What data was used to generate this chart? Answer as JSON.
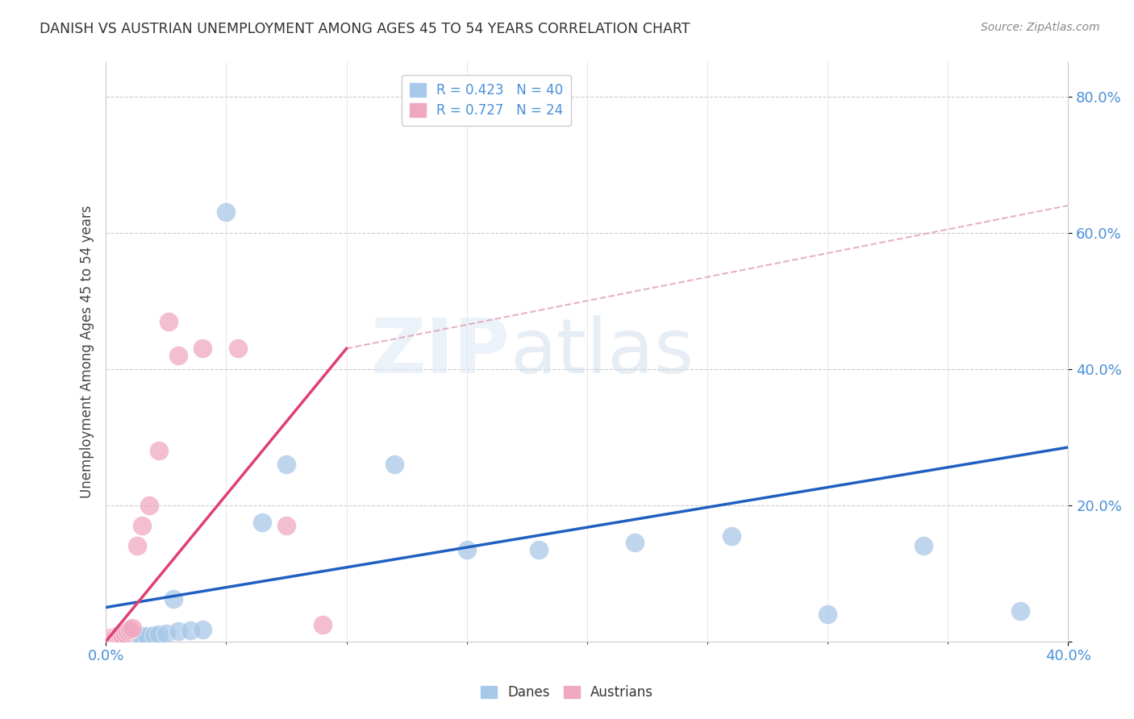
{
  "title": "DANISH VS AUSTRIAN UNEMPLOYMENT AMONG AGES 45 TO 54 YEARS CORRELATION CHART",
  "source": "Source: ZipAtlas.com",
  "ylabel": "Unemployment Among Ages 45 to 54 years",
  "xlim": [
    0.0,
    0.4
  ],
  "ylim": [
    0.0,
    0.85
  ],
  "ytick_vals": [
    0.0,
    0.2,
    0.4,
    0.6,
    0.8
  ],
  "ytick_labels": [
    "",
    "20.0%",
    "40.0%",
    "60.0%",
    "80.0%"
  ],
  "danes_color": "#a8c8e8",
  "austrians_color": "#f0a8c0",
  "danes_line_color": "#2060c0",
  "austrians_line_color": "#e04070",
  "dashed_line_color": "#e0a0b0",
  "watermark_zip": "ZIP",
  "watermark_atlas": "atlas",
  "danes_x": [
    0.001,
    0.002,
    0.003,
    0.003,
    0.004,
    0.004,
    0.005,
    0.005,
    0.006,
    0.006,
    0.007,
    0.007,
    0.008,
    0.009,
    0.01,
    0.01,
    0.011,
    0.012,
    0.013,
    0.014,
    0.015,
    0.017,
    0.02,
    0.022,
    0.025,
    0.028,
    0.03,
    0.035,
    0.04,
    0.05,
    0.065,
    0.075,
    0.12,
    0.15,
    0.18,
    0.22,
    0.26,
    0.3,
    0.34,
    0.38
  ],
  "danes_y": [
    0.005,
    0.003,
    0.004,
    0.006,
    0.005,
    0.004,
    0.006,
    0.005,
    0.007,
    0.004,
    0.006,
    0.005,
    0.007,
    0.006,
    0.007,
    0.005,
    0.008,
    0.006,
    0.007,
    0.006,
    0.008,
    0.008,
    0.009,
    0.01,
    0.012,
    0.062,
    0.015,
    0.016,
    0.018,
    0.63,
    0.175,
    0.26,
    0.26,
    0.135,
    0.135,
    0.145,
    0.155,
    0.04,
    0.14,
    0.045
  ],
  "austrians_x": [
    0.001,
    0.002,
    0.002,
    0.003,
    0.004,
    0.005,
    0.005,
    0.006,
    0.006,
    0.007,
    0.008,
    0.009,
    0.01,
    0.011,
    0.013,
    0.015,
    0.018,
    0.022,
    0.026,
    0.03,
    0.04,
    0.055,
    0.075,
    0.09
  ],
  "austrians_y": [
    0.004,
    0.003,
    0.006,
    0.005,
    0.007,
    0.005,
    0.008,
    0.006,
    0.01,
    0.008,
    0.012,
    0.015,
    0.017,
    0.02,
    0.14,
    0.17,
    0.2,
    0.28,
    0.47,
    0.42,
    0.43,
    0.43,
    0.17,
    0.025
  ],
  "danes_trend": [
    0.0,
    0.4,
    0.05,
    0.285
  ],
  "austrians_trend": [
    0.0,
    0.1,
    0.0,
    0.43
  ],
  "dashed_trend": [
    0.1,
    0.4,
    0.43,
    0.64
  ]
}
